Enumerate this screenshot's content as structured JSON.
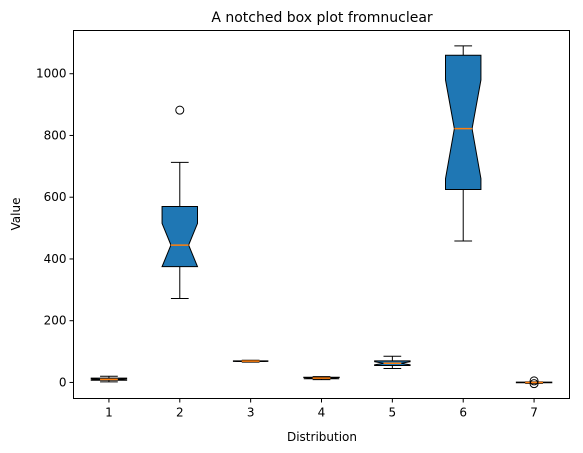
{
  "chart_data": {
    "type": "box",
    "variant": "notched",
    "title": "A notched box plot fromnuclear",
    "xlabel": "Distribution",
    "ylabel": "Value",
    "ylim": [
      -52,
      1140
    ],
    "yticks": [
      0,
      200,
      400,
      600,
      800,
      1000
    ],
    "categories": [
      "1",
      "2",
      "3",
      "4",
      "5",
      "6",
      "7"
    ],
    "box_color": "#1f77b4",
    "median_color": "#ff7f0e",
    "grid": false,
    "legend": "none",
    "boxes": [
      {
        "category": "1",
        "whisker_low": 2,
        "q1": 7,
        "median": 10,
        "q3": 14,
        "whisker_high": 20,
        "notch_low": 8,
        "notch_high": 12,
        "outliers": []
      },
      {
        "category": "2",
        "whisker_low": 272,
        "q1": 375,
        "median": 445,
        "q3": 570,
        "whisker_high": 713,
        "notch_low": 375,
        "notch_high": 515,
        "outliers": [
          882
        ]
      },
      {
        "category": "3",
        "whisker_low": 66,
        "q1": 68,
        "median": 69,
        "q3": 70,
        "whisker_high": 72,
        "notch_low": 68,
        "notch_high": 70,
        "outliers": []
      },
      {
        "category": "4",
        "whisker_low": 9,
        "q1": 12,
        "median": 14,
        "q3": 17,
        "whisker_high": 19,
        "notch_low": 12,
        "notch_high": 16,
        "outliers": []
      },
      {
        "category": "5",
        "whisker_low": 45,
        "q1": 55,
        "median": 62,
        "q3": 70,
        "whisker_high": 85,
        "notch_low": 57,
        "notch_high": 67,
        "outliers": []
      },
      {
        "category": "6",
        "whisker_low": 458,
        "q1": 625,
        "median": 822,
        "q3": 1060,
        "whisker_high": 1090,
        "notch_low": 660,
        "notch_high": 980,
        "outliers": []
      },
      {
        "category": "7",
        "whisker_low": -3,
        "q1": -1,
        "median": 0,
        "q3": 1,
        "whisker_high": 2,
        "notch_low": -0.5,
        "notch_high": 0.5,
        "outliers": [
          -4,
          5
        ]
      }
    ]
  }
}
